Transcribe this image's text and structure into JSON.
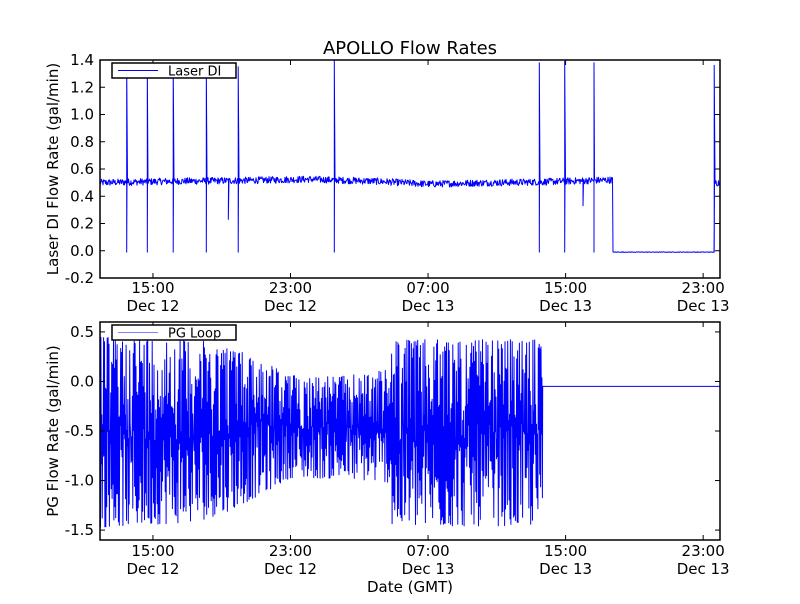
{
  "title": "APOLLO Flow Rates",
  "xlabel": "Date (GMT)",
  "x_units": "hours since Dec 12 00:00 GMT",
  "x_ticks": [
    {
      "value": 15,
      "time": "15:00",
      "date": "Dec 12"
    },
    {
      "value": 23,
      "time": "23:00",
      "date": "Dec 12"
    },
    {
      "value": 31,
      "time": "07:00",
      "date": "Dec 13"
    },
    {
      "value": 39,
      "time": "15:00",
      "date": "Dec 13"
    },
    {
      "value": 47,
      "time": "23:00",
      "date": "Dec 13"
    }
  ],
  "chart_data": [
    {
      "type": "line",
      "name": "laser",
      "ylabel": "Laser DI Flow Rate (gal/min)",
      "legend": {
        "label": "Laser DI",
        "placement": "upper-left"
      },
      "color": "#0000ff",
      "xlim": [
        11.92,
        47.98
      ],
      "ylim": [
        -0.2,
        1.4
      ],
      "yticks": [
        {
          "value": -0.2,
          "label": "-0.2"
        },
        {
          "value": 0.0,
          "label": "0.0"
        },
        {
          "value": 0.2,
          "label": "0.2"
        },
        {
          "value": 0.4,
          "label": "0.4"
        },
        {
          "value": 0.6,
          "label": "0.6"
        },
        {
          "value": 0.8,
          "label": "0.8"
        },
        {
          "value": 1.0,
          "label": "1.0"
        },
        {
          "value": 1.2,
          "label": "1.2"
        },
        {
          "value": 1.4,
          "label": "1.4"
        }
      ],
      "baseline": [
        [
          11.92,
          0.5
        ],
        [
          16,
          0.51
        ],
        [
          20,
          0.515
        ],
        [
          24,
          0.525
        ],
        [
          28,
          0.51
        ],
        [
          31,
          0.49
        ],
        [
          35,
          0.5
        ],
        [
          37.5,
          0.505
        ],
        [
          41.7,
          0.52
        ]
      ],
      "noise_amplitude": 0.025,
      "off_period": {
        "start": 41.74,
        "end": 47.64,
        "value": -0.01
      },
      "restart_value": 0.5,
      "spikes": [
        {
          "x": 13.47,
          "high": 1.37,
          "low": -0.01
        },
        {
          "x": 14.67,
          "high": 1.37,
          "low": -0.01
        },
        {
          "x": 16.18,
          "high": 1.37,
          "low": -0.01
        },
        {
          "x": 18.1,
          "high": 1.37,
          "low": -0.01
        },
        {
          "x": 19.96,
          "high": 1.35,
          "low": -0.01
        },
        {
          "x": 25.55,
          "high": 1.4,
          "low": -0.01
        },
        {
          "x": 37.47,
          "high": 1.38,
          "low": -0.01
        },
        {
          "x": 38.95,
          "high": 1.39,
          "low": -0.01
        },
        {
          "x": 40.65,
          "high": 1.38,
          "low": -0.01
        },
        {
          "x": 47.64,
          "high": 1.36,
          "low": -0.01
        }
      ],
      "dips": [
        {
          "x": 19.38,
          "low": 0.23
        },
        {
          "x": 40.01,
          "low": 0.33
        }
      ]
    },
    {
      "type": "line",
      "name": "pg",
      "ylabel": "PG Flow Rate (gal/min)",
      "legend": {
        "label": "PG Loop",
        "placement": "upper-left"
      },
      "color": "#0000ff",
      "legend_color": "#8080ff",
      "xlim": [
        11.92,
        47.98
      ],
      "ylim": [
        -1.6,
        0.6
      ],
      "yticks": [
        {
          "value": -1.5,
          "label": "-1.5"
        },
        {
          "value": -1.0,
          "label": "-1.0"
        },
        {
          "value": -0.5,
          "label": "-0.5"
        },
        {
          "value": 0.0,
          "label": "0.0"
        },
        {
          "value": 0.5,
          "label": "0.5"
        }
      ],
      "envelope": [
        {
          "x": 11.92,
          "max": 0.45,
          "min": -1.47
        },
        {
          "x": 17.5,
          "max": 0.42,
          "min": -1.42
        },
        {
          "x": 19.5,
          "max": 0.35,
          "min": -1.3
        },
        {
          "x": 21.5,
          "max": 0.2,
          "min": -1.12
        },
        {
          "x": 23.0,
          "max": 0.06,
          "min": -0.97
        },
        {
          "x": 26.0,
          "max": 0.05,
          "min": -0.98
        },
        {
          "x": 28.85,
          "max": 0.12,
          "min": -1.02
        },
        {
          "x": 28.9,
          "max": 0.42,
          "min": -1.47
        },
        {
          "x": 37.67,
          "max": 0.42,
          "min": -1.45
        }
      ],
      "after_value": -0.05,
      "after_end": 47.98
    }
  ]
}
